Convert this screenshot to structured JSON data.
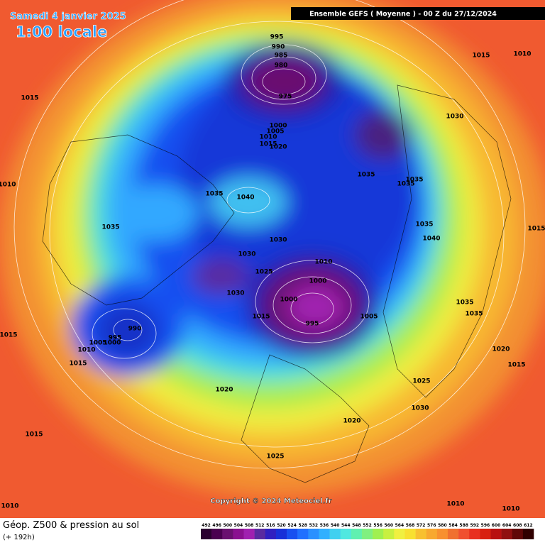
{
  "header": {
    "date": "Samedi 4 janvier 2025",
    "time": "1:00 locale",
    "model": "Ensemble GEFS  ( Moyenne )  -  00 Z du 27/12/2024"
  },
  "isobar_labels": [
    995,
    990,
    985,
    980,
    975,
    1015,
    1010,
    1015,
    1030,
    1000,
    1005,
    1010,
    1015,
    1020,
    1035,
    1035,
    1035,
    1010,
    1035,
    1040,
    1035,
    1035,
    1040,
    1015,
    1030,
    1030,
    1010,
    1025,
    1000,
    1030,
    1000,
    1015,
    1005,
    995,
    990,
    995,
    1005,
    1000,
    1010,
    1015,
    1035,
    1035,
    1015,
    1020,
    1015,
    1025,
    1020,
    1030,
    1020,
    1015,
    1025,
    1010,
    1010,
    1010,
    1010
  ],
  "copyright": "Copyright © 2024 Meteociel.fr",
  "footer": {
    "title": "Géop. Z500 & pression au sol",
    "subtitle": "(+ 192h)"
  },
  "legend": {
    "levels": [
      492,
      496,
      500,
      504,
      508,
      512,
      516,
      520,
      524,
      528,
      532,
      536,
      540,
      544,
      548,
      552,
      556,
      560,
      564,
      568,
      572,
      576,
      580,
      584,
      588,
      592,
      596,
      600,
      604,
      608,
      612
    ],
    "colors": [
      "#2a0030",
      "#4a0050",
      "#6a1070",
      "#8a1090",
      "#a020b0",
      "#5a2aa0",
      "#3020c0",
      "#1830d8",
      "#1850f0",
      "#2070ff",
      "#2a90ff",
      "#30b0ff",
      "#40d0f0",
      "#50e8e0",
      "#60f0b0",
      "#80f080",
      "#a0f050",
      "#c8f040",
      "#f0f040",
      "#f8e030",
      "#f8c030",
      "#f8a830",
      "#f89030",
      "#f07030",
      "#f05030",
      "#e83020",
      "#d82010",
      "#b81010",
      "#901010",
      "#600808",
      "#300000"
    ]
  }
}
